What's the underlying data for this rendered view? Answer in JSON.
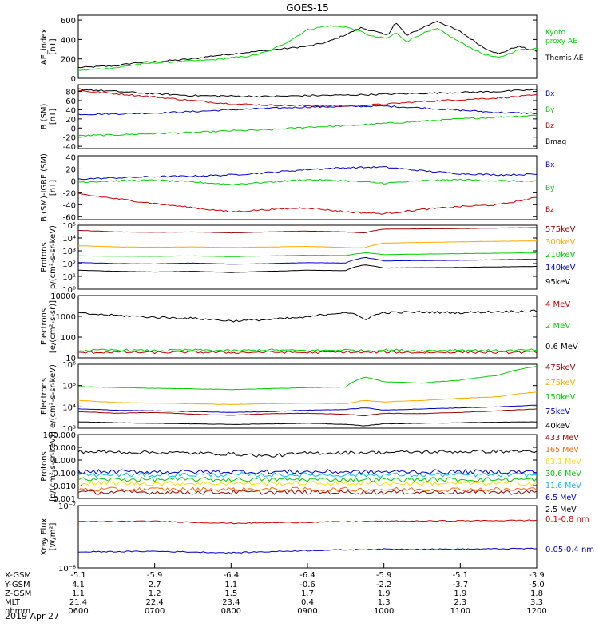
{
  "title": "GOES-15",
  "date_label": "2019 Apr 27",
  "xaxis": {
    "row_labels": [
      "X-GSM",
      "Y-GSM",
      "Z-GSM",
      "MLT",
      "hhmm"
    ],
    "columns": [
      {
        "hhmm": "0600",
        "X-GSM": "-5.1",
        "Y-GSM": "4.1",
        "Z-GSM": "1.1",
        "MLT": "21.4"
      },
      {
        "hhmm": "0700",
        "X-GSM": "-5.9",
        "Y-GSM": "2.7",
        "Z-GSM": "1.2",
        "MLT": "22.4"
      },
      {
        "hhmm": "0800",
        "X-GSM": "-6.4",
        "Y-GSM": "1.1",
        "Z-GSM": "1.5",
        "MLT": "23.4"
      },
      {
        "hhmm": "0900",
        "X-GSM": "-6.4",
        "Y-GSM": "-0.6",
        "Z-GSM": "1.7",
        "MLT": "0.4"
      },
      {
        "hhmm": "1000",
        "X-GSM": "-5.9",
        "Y-GSM": "-2.2",
        "Z-GSM": "1.9",
        "MLT": "1.3"
      },
      {
        "hhmm": "1100",
        "X-GSM": "-5.1",
        "Y-GSM": "-3.7",
        "Z-GSM": "1.9",
        "MLT": "2.3"
      },
      {
        "hhmm": "1200",
        "X-GSM": "-3.9",
        "Y-GSM": "-5.0",
        "Z-GSM": "1.8",
        "MLT": "3.3"
      }
    ]
  },
  "chart_data": [
    {
      "type": "line",
      "ylabel_lines": [
        "AE_index",
        "[nT]"
      ],
      "scale": "linear",
      "ylim": [
        0,
        650
      ],
      "yticks": [
        0,
        200,
        400,
        600
      ],
      "ytick_labels": [
        "0",
        "200",
        "400",
        "600"
      ],
      "x_hours": [
        6,
        6.5,
        6.75,
        7,
        7.5,
        7.75,
        8,
        8.25,
        8.5,
        8.75,
        9,
        9.25,
        9.5,
        9.7,
        9.85,
        10.05,
        10.15,
        10.3,
        10.5,
        10.7,
        11,
        11.3,
        11.5,
        11.75,
        12
      ],
      "series": [
        {
          "name": "Themis AE",
          "color": "#000000",
          "values": [
            110,
            130,
            160,
            170,
            200,
            230,
            250,
            270,
            290,
            310,
            330,
            370,
            450,
            520,
            490,
            440,
            580,
            440,
            520,
            590,
            480,
            320,
            250,
            330,
            280
          ]
        },
        {
          "name": "Kyoto proxy AE",
          "color": "#00dd00",
          "legend_lines": [
            "Kyoto",
            "proxy AE"
          ],
          "values": [
            80,
            110,
            140,
            160,
            180,
            190,
            210,
            230,
            280,
            380,
            500,
            540,
            530,
            480,
            430,
            410,
            470,
            380,
            460,
            510,
            370,
            250,
            210,
            290,
            310
          ]
        }
      ]
    },
    {
      "type": "line",
      "ylabel_lines": [
        "B (SM)",
        "[nT]"
      ],
      "scale": "linear",
      "ylim": [
        -45,
        95
      ],
      "yticks": [
        -40,
        -20,
        0,
        20,
        40,
        60,
        80
      ],
      "ytick_labels": [
        "-40",
        "-20",
        "0",
        "20",
        "40",
        "60",
        "80"
      ],
      "x_hours": [
        6,
        6.5,
        7,
        7.5,
        8,
        8.5,
        9,
        9.5,
        10,
        10.5,
        11,
        11.5,
        12
      ],
      "series": [
        {
          "name": "Bx",
          "color": "#0000cc",
          "values": [
            30,
            31,
            33,
            36,
            40,
            43,
            46,
            47,
            48,
            44,
            39,
            34,
            32
          ]
        },
        {
          "name": "By",
          "color": "#00cc00",
          "values": [
            -17,
            -15,
            -12,
            -10,
            -6,
            -4,
            2,
            5,
            10,
            15,
            20,
            24,
            28
          ]
        },
        {
          "name": "Bz",
          "color": "#cc0000",
          "values": [
            82,
            75,
            68,
            60,
            53,
            50,
            49,
            48,
            52,
            58,
            62,
            66,
            72
          ]
        },
        {
          "name": "Bmag",
          "color": "#000000",
          "values": [
            85,
            80,
            75,
            71,
            70,
            69,
            71,
            72,
            74,
            76,
            78,
            80,
            84
          ]
        }
      ]
    },
    {
      "type": "line",
      "ylabel_lines": [
        "B (SM)-IGRF (SM)",
        "[nT]"
      ],
      "scale": "linear",
      "ylim": [
        -65,
        42
      ],
      "yticks": [
        -60,
        -40,
        -20,
        0,
        20,
        40
      ],
      "ytick_labels": [
        "-60",
        "-40",
        "-20",
        "0",
        "20",
        "40"
      ],
      "x_hours": [
        6,
        6.5,
        7,
        7.5,
        8,
        8.5,
        9,
        9.5,
        10,
        10.5,
        11,
        11.5,
        12
      ],
      "series": [
        {
          "name": "Bx",
          "color": "#0000cc",
          "values": [
            3,
            5,
            7,
            8,
            10,
            14,
            19,
            22,
            23,
            17,
            12,
            10,
            11
          ]
        },
        {
          "name": "By",
          "color": "#00cc00",
          "values": [
            -2,
            0,
            1,
            -2,
            -6,
            -2,
            2,
            0,
            -4,
            0,
            2,
            0,
            -1
          ]
        },
        {
          "name": "Bz",
          "color": "#cc0000",
          "values": [
            -22,
            -30,
            -38,
            -45,
            -52,
            -48,
            -45,
            -52,
            -55,
            -48,
            -43,
            -40,
            -28
          ]
        }
      ]
    },
    {
      "type": "line",
      "ylabel_lines": [
        "Protons",
        "p/(cm²-s-sr-keV)"
      ],
      "scale": "log",
      "ylim": [
        1,
        100000
      ],
      "yticks": [
        1,
        10,
        100,
        1000,
        10000,
        100000
      ],
      "ytick_labels": [
        "10⁰",
        "10¹",
        "10²",
        "10³",
        "10⁴",
        "10⁵"
      ],
      "x_hours": [
        6,
        6.5,
        7,
        7.5,
        8,
        8.5,
        9,
        9.5,
        9.75,
        10,
        10.5,
        11,
        11.5,
        12
      ],
      "series": [
        {
          "name": "575keV",
          "color": "#990000",
          "values": [
            40000,
            30000,
            28000,
            30000,
            25000,
            30000,
            35000,
            30000,
            25000,
            50000,
            52000,
            55000,
            60000,
            65000
          ]
        },
        {
          "name": "300keV",
          "color": "#ffaa00",
          "values": [
            2500,
            2000,
            1900,
            2000,
            1800,
            2000,
            2200,
            1800,
            1700,
            4000,
            4500,
            5000,
            5500,
            6000
          ]
        },
        {
          "name": "210keV",
          "color": "#00cc00",
          "values": [
            400,
            380,
            370,
            400,
            350,
            400,
            450,
            420,
            700,
            500,
            550,
            600,
            650,
            700
          ]
        },
        {
          "name": "140keV",
          "color": "#0000cc",
          "values": [
            120,
            100,
            95,
            110,
            90,
            100,
            120,
            110,
            300,
            160,
            170,
            180,
            200,
            220
          ]
        },
        {
          "name": "95keV",
          "color": "#000000",
          "values": [
            30,
            25,
            22,
            25,
            20,
            25,
            30,
            28,
            80,
            45,
            48,
            50,
            55,
            60
          ]
        }
      ]
    },
    {
      "type": "line",
      "ylabel_lines": [
        "Electrons",
        "[e/(cm²-s-sr)]"
      ],
      "scale": "log",
      "ylim": [
        10,
        10000
      ],
      "yticks": [
        10,
        100,
        1000,
        10000
      ],
      "ytick_labels": [
        "10",
        "100",
        "1000",
        "10000"
      ],
      "x_hours": [
        6,
        6.5,
        7,
        7.5,
        8,
        8.5,
        9,
        9.5,
        9.75,
        10,
        10.5,
        11,
        11.5,
        12
      ],
      "series": [
        {
          "name": "4 MeV",
          "color": "#cc0000",
          "values": [
            18,
            19,
            18,
            19,
            18,
            19,
            18,
            19,
            18,
            19,
            18,
            19,
            18,
            19
          ]
        },
        {
          "name": "2 MeV",
          "color": "#00cc00",
          "values": [
            22,
            24,
            22,
            24,
            22,
            24,
            22,
            24,
            22,
            24,
            22,
            24,
            22,
            24
          ]
        },
        {
          "name": "0.6 MeV",
          "color": "#000000",
          "values": [
            1400,
            1100,
            900,
            800,
            600,
            700,
            900,
            1600,
            700,
            1500,
            1600,
            1500,
            1700,
            1800
          ]
        }
      ]
    },
    {
      "type": "line",
      "ylabel_lines": [
        "Electrons",
        "e/(cm²-s-sr-keV)"
      ],
      "scale": "log",
      "ylim": [
        1000,
        1000000
      ],
      "yticks": [
        1000,
        10000,
        100000,
        1000000
      ],
      "ytick_labels": [
        "10³",
        "10⁴",
        "10⁵",
        "10⁶"
      ],
      "x_hours": [
        6,
        6.5,
        7,
        7.5,
        8,
        8.5,
        9,
        9.5,
        9.75,
        10,
        10.5,
        11,
        11.5,
        12
      ],
      "series": [
        {
          "name": "475keV",
          "color": "#990000",
          "values": [
            6000,
            5000,
            5500,
            4500,
            4000,
            4800,
            5000,
            4500,
            3800,
            5000,
            4800,
            5500,
            6500,
            8000
          ]
        },
        {
          "name": "275keV",
          "color": "#ffaa00",
          "values": [
            20000,
            16000,
            15000,
            14000,
            13000,
            14000,
            15000,
            14000,
            20000,
            17000,
            20000,
            25000,
            30000,
            50000
          ]
        },
        {
          "name": "150keV",
          "color": "#00cc00",
          "values": [
            90000,
            80000,
            75000,
            70000,
            65000,
            72000,
            80000,
            85000,
            250000,
            150000,
            130000,
            180000,
            300000,
            800000
          ]
        },
        {
          "name": "75keV",
          "color": "#0000cc",
          "values": [
            8000,
            7000,
            6500,
            6000,
            5500,
            6000,
            7000,
            7500,
            9000,
            7000,
            8000,
            9000,
            10000,
            12000
          ]
        },
        {
          "name": "40keV",
          "color": "#000000",
          "values": [
            2000,
            1800,
            1700,
            1600,
            1500,
            1600,
            1700,
            1500,
            1300,
            1600,
            1700,
            1800,
            1900,
            2000
          ]
        }
      ]
    },
    {
      "type": "line",
      "ylabel_lines": [
        "Protons",
        "[p/(cm²-s-sr-keV)]"
      ],
      "scale": "log",
      "ylim": [
        0.001,
        100
      ],
      "yticks": [
        0.001,
        0.01,
        0.1,
        1,
        10,
        100
      ],
      "ytick_labels": [
        "0.001",
        "0.010",
        "0.100",
        "1.000",
        "10.000",
        "100.000"
      ],
      "x_hours": [
        6,
        7,
        8,
        8.5,
        9,
        10,
        11,
        12
      ],
      "series": [
        {
          "name": "433 MeV",
          "color": "#990000",
          "values": [
            0.003,
            0.003,
            0.003,
            0.003,
            0.003,
            0.003,
            0.003,
            0.003
          ]
        },
        {
          "name": "165 MeV",
          "color": "#ff6600",
          "values": [
            0.005,
            0.005,
            0.005,
            0.005,
            0.005,
            0.005,
            0.005,
            0.005
          ]
        },
        {
          "name": "63.1 MeV",
          "color": "#ffdd00",
          "values": [
            0.015,
            0.015,
            0.015,
            0.015,
            0.015,
            0.015,
            0.015,
            0.015
          ]
        },
        {
          "name": "30.6 MeV",
          "color": "#00cc00",
          "values": [
            0.03,
            0.03,
            0.03,
            0.03,
            0.03,
            0.03,
            0.03,
            0.03
          ]
        },
        {
          "name": "11.6 MeV",
          "color": "#00bbff",
          "values": [
            0.07,
            0.07,
            0.07,
            0.07,
            0.07,
            0.07,
            0.07,
            0.07
          ]
        },
        {
          "name": "6.5 MeV",
          "color": "#0000cc",
          "values": [
            0.12,
            0.12,
            0.12,
            0.12,
            0.12,
            0.12,
            0.12,
            0.12
          ]
        },
        {
          "name": "2.5 MeV",
          "color": "#000000",
          "values": [
            4.5,
            4.0,
            3.0,
            2.0,
            3.5,
            4.0,
            4.5,
            5.0
          ]
        }
      ]
    },
    {
      "type": "line",
      "ylabel_lines": [
        "Xray Flux",
        "[W/m²]"
      ],
      "scale": "log",
      "ylim": [
        1e-08,
        1e-07
      ],
      "yticks": [
        1e-08,
        1e-07
      ],
      "ytick_labels": [
        "10⁻⁸",
        "10⁻⁷"
      ],
      "x_hours": [
        6,
        7,
        8,
        9,
        10,
        11,
        12
      ],
      "series": [
        {
          "name": "0.1-0.8 nm",
          "color": "#cc0000",
          "values": [
            5.5e-08,
            5.6e-08,
            5.2e-08,
            5.4e-08,
            5.6e-08,
            5.7e-08,
            5.8e-08
          ]
        },
        {
          "name": "0.05-0.4 nm",
          "color": "#0000cc",
          "values": [
            1.8e-08,
            1.85e-08,
            1.75e-08,
            1.9e-08,
            2e-08,
            2e-08,
            2.05e-08
          ]
        }
      ]
    }
  ]
}
